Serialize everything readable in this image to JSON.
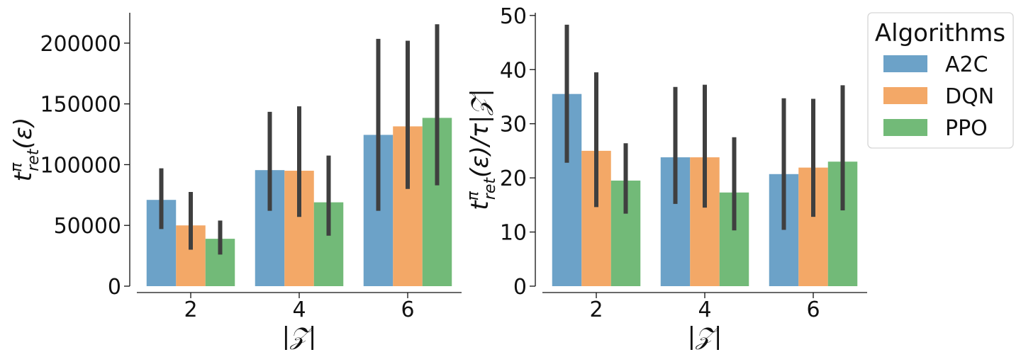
{
  "colors": {
    "A2C": "#5f9ac3",
    "DQN": "#f2a15a",
    "PPO": "#66b46d",
    "error_bar": "#3f3f3f"
  },
  "legend": {
    "title": "Algorithms",
    "placement": "outside-right-top",
    "entries": [
      "A2C",
      "DQN",
      "PPO"
    ]
  },
  "chart_data": [
    {
      "type": "bar",
      "categories": [
        "2",
        "4",
        "6"
      ],
      "xlabel": "|𝒵|",
      "ylabel_main": "t",
      "ylabel_sup": "π",
      "ylabel_sub": "ret",
      "ylabel_rest": "(ε)",
      "ylim": [
        0,
        225000
      ],
      "yticks": [
        0,
        50000,
        100000,
        150000,
        200000
      ],
      "ytick_labels": [
        "0",
        "50000",
        "100000",
        "150000",
        "200000"
      ],
      "grid": false,
      "series": [
        {
          "name": "A2C",
          "values": [
            71000,
            95500,
            124500
          ],
          "err_low": [
            47000,
            62000,
            62000
          ],
          "err_high": [
            97000,
            143500,
            203500
          ]
        },
        {
          "name": "DQN",
          "values": [
            50000,
            95000,
            131500
          ],
          "err_low": [
            30000,
            57000,
            80000
          ],
          "err_high": [
            77500,
            148000,
            202000
          ]
        },
        {
          "name": "PPO",
          "values": [
            39000,
            69000,
            138500
          ],
          "err_low": [
            26000,
            41500,
            83000
          ],
          "err_high": [
            54000,
            107500,
            215500
          ]
        }
      ]
    },
    {
      "type": "bar",
      "categories": [
        "2",
        "4",
        "6"
      ],
      "xlabel": "|𝒵|",
      "ylabel_main": "t",
      "ylabel_sup": "π",
      "ylabel_sub": "ret",
      "ylabel_rest": "(ε)/τ|𝒵|",
      "ylim": [
        0,
        50.5
      ],
      "yticks": [
        0,
        10,
        20,
        30,
        40,
        50
      ],
      "ytick_labels": [
        "0",
        "10",
        "20",
        "30",
        "40",
        "50"
      ],
      "grid": false,
      "series": [
        {
          "name": "A2C",
          "values": [
            35.5,
            23.8,
            20.7
          ],
          "err_low": [
            22.8,
            15.2,
            10.4
          ],
          "err_high": [
            48.3,
            36.8,
            34.7
          ]
        },
        {
          "name": "DQN",
          "values": [
            25.0,
            23.8,
            21.9
          ],
          "err_low": [
            14.6,
            14.5,
            12.8
          ],
          "err_high": [
            39.5,
            37.2,
            34.6
          ]
        },
        {
          "name": "PPO",
          "values": [
            19.5,
            17.3,
            23.0
          ],
          "err_low": [
            13.4,
            10.3,
            14.0
          ],
          "err_high": [
            26.4,
            27.5,
            37.1
          ]
        }
      ]
    }
  ]
}
